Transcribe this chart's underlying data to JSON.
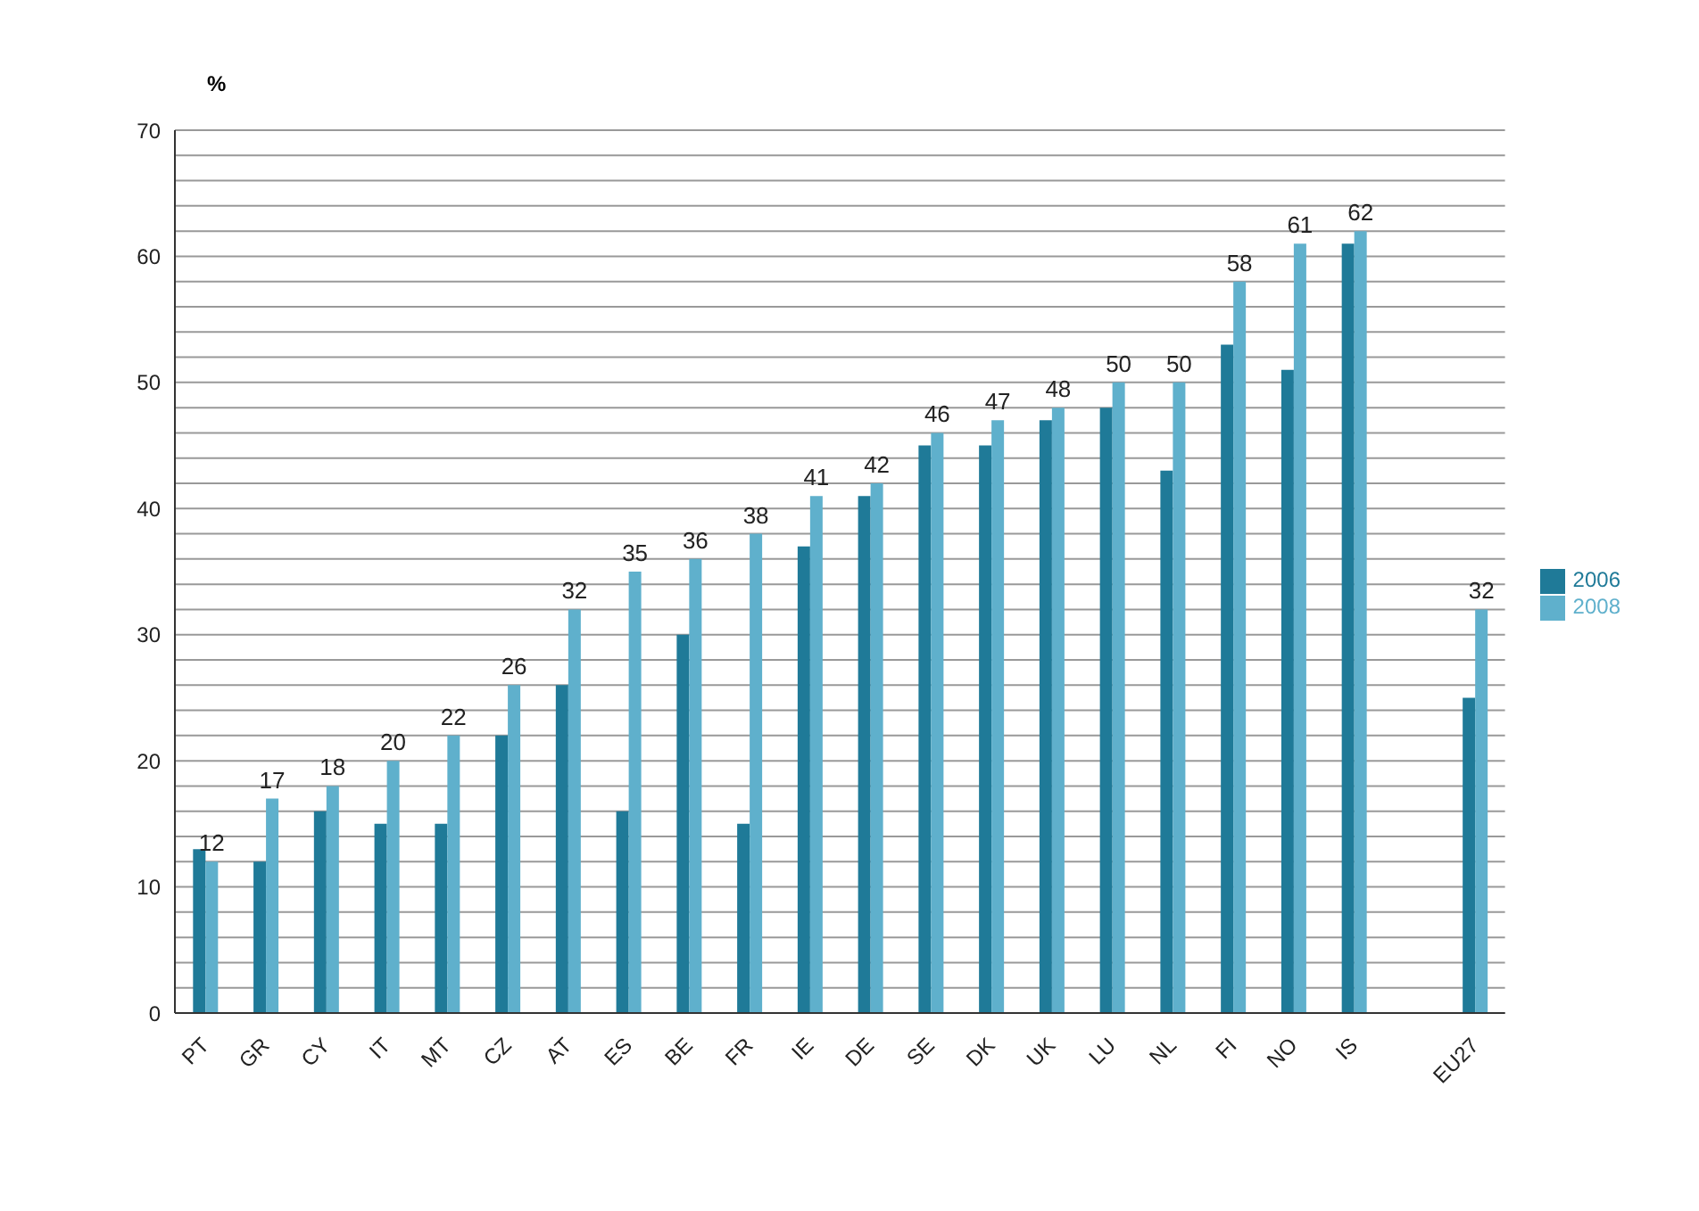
{
  "chart_data": {
    "type": "bar",
    "ylabel": "%",
    "categories": [
      "PT",
      "GR",
      "CY",
      "IT",
      "MT",
      "CZ",
      "AT",
      "ES",
      "BE",
      "FR",
      "IE",
      "DE",
      "SE",
      "DK",
      "UK",
      "LU",
      "NL",
      "FI",
      "NO",
      "IS",
      null,
      "EU27"
    ],
    "series": [
      {
        "name": "2006",
        "color": "#1f7a98",
        "values": [
          13,
          12,
          16,
          15,
          15,
          22,
          26,
          16,
          30,
          15,
          37,
          41,
          45,
          45,
          47,
          48,
          43,
          53,
          51,
          61,
          null,
          25
        ]
      },
      {
        "name": "2008",
        "color": "#5fb0cc",
        "values": [
          12,
          17,
          18,
          20,
          22,
          26,
          32,
          35,
          36,
          38,
          41,
          42,
          46,
          47,
          48,
          50,
          50,
          58,
          61,
          62,
          null,
          32
        ],
        "value_labels": [
          "12",
          "17",
          "18",
          "20",
          "22",
          "26",
          "32",
          "35",
          "36",
          "38",
          "41",
          "42",
          "46",
          "47",
          "48",
          "50",
          "50",
          "58",
          "61",
          "62",
          null,
          "32"
        ]
      }
    ],
    "ylim": [
      0,
      70
    ],
    "yticks": [
      0,
      {
        "value": 2,
        "label": null
      },
      {
        "value": 4,
        "label": null
      },
      {
        "value": 6,
        "label": null
      },
      {
        "value": 8,
        "label": null
      },
      10,
      {
        "value": 12,
        "label": null
      },
      {
        "value": 14,
        "label": null
      },
      {
        "value": 16,
        "label": null
      },
      {
        "value": 18,
        "label": null
      },
      20,
      {
        "value": 22,
        "label": null
      },
      {
        "value": 24,
        "label": null
      },
      {
        "value": 26,
        "label": null
      },
      {
        "value": 28,
        "label": null
      },
      30,
      {
        "value": 32,
        "label": null
      },
      {
        "value": 34,
        "label": null
      },
      {
        "value": 36,
        "label": null
      },
      {
        "value": 38,
        "label": null
      },
      40,
      {
        "value": 42,
        "label": null
      },
      {
        "value": 44,
        "label": null
      },
      {
        "value": 46,
        "label": null
      },
      {
        "value": 48,
        "label": null
      },
      50,
      {
        "value": 52,
        "label": null
      },
      {
        "value": 54,
        "label": null
      },
      {
        "value": 56,
        "label": null
      },
      {
        "value": 58,
        "label": null
      },
      60,
      {
        "value": 62,
        "label": null
      },
      {
        "value": 64,
        "label": null
      },
      {
        "value": 66,
        "label": null
      },
      {
        "value": 68,
        "label": null
      },
      70
    ],
    "grid": "y",
    "legend": "right"
  }
}
